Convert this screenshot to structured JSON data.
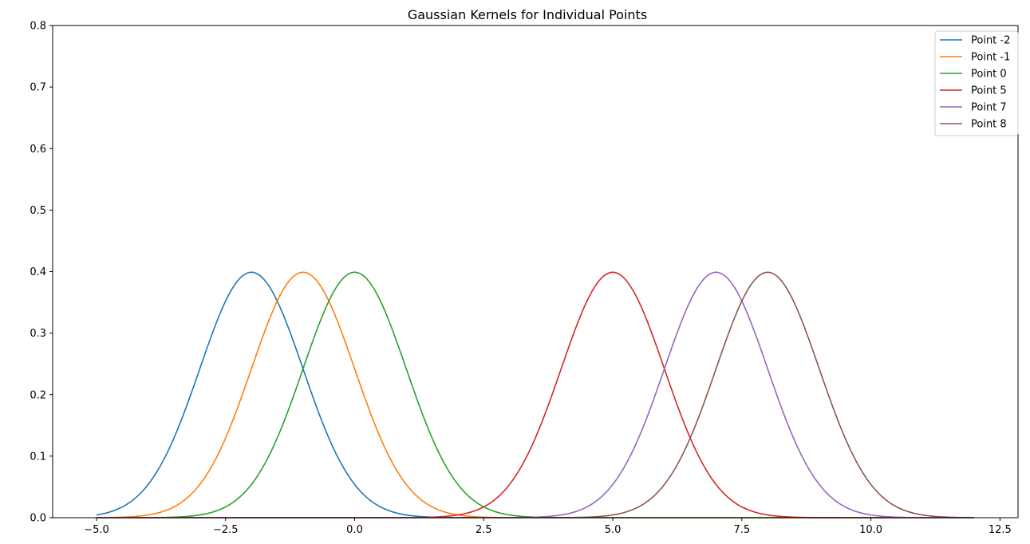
{
  "chart_data": {
    "type": "line",
    "title": "Gaussian Kernels for Individual Points",
    "xlabel": "",
    "ylabel": "",
    "xlim": [
      -5.85,
      12.85
    ],
    "ylim": [
      0,
      0.8
    ],
    "x_ticks": [
      -5.0,
      -2.5,
      0.0,
      2.5,
      5.0,
      7.5,
      10.0,
      12.5
    ],
    "x_tick_labels": [
      "−5.0",
      "−2.5",
      "0.0",
      "2.5",
      "5.0",
      "7.5",
      "10.0",
      "12.5"
    ],
    "y_ticks": [
      0.0,
      0.1,
      0.2,
      0.3,
      0.4,
      0.5,
      0.6,
      0.7,
      0.8
    ],
    "y_tick_labels": [
      "0.0",
      "0.1",
      "0.2",
      "0.3",
      "0.4",
      "0.5",
      "0.6",
      "0.7",
      "0.8"
    ],
    "x_range": [
      -5,
      12
    ],
    "kernel": "gaussian",
    "bandwidth": 1,
    "grid": false,
    "legend_position": "upper right",
    "series": [
      {
        "name": "Point -2",
        "center": -2,
        "color": "#1f77b4"
      },
      {
        "name": "Point -1",
        "center": -1,
        "color": "#ff7f0e"
      },
      {
        "name": "Point 0",
        "center": 0,
        "color": "#2ca02c"
      },
      {
        "name": "Point 5",
        "center": 5,
        "color": "#d62728"
      },
      {
        "name": "Point 7",
        "center": 7,
        "color": "#9467bd"
      },
      {
        "name": "Point 8",
        "center": 8,
        "color": "#8c564b"
      }
    ]
  }
}
